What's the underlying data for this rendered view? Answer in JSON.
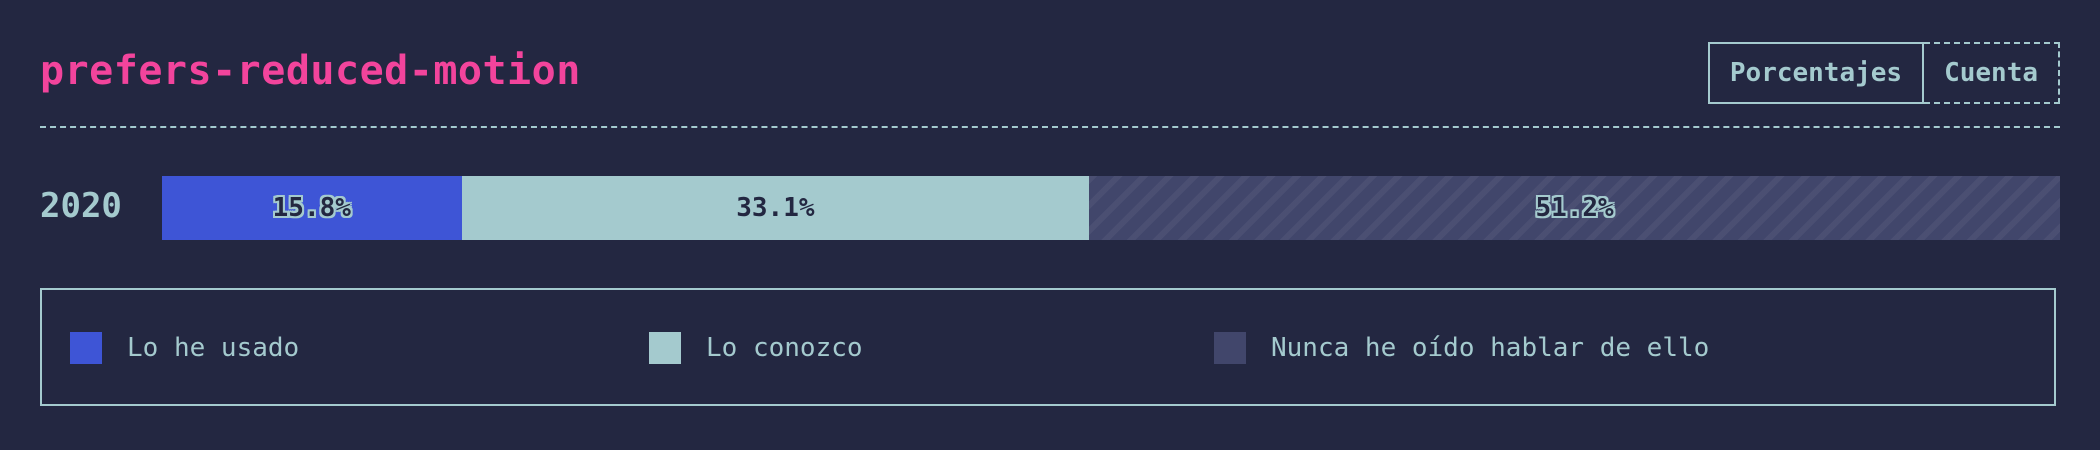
{
  "title": "prefers-reduced-motion",
  "toggle": {
    "percentages_label": "Porcentajes",
    "count_label": "Cuenta"
  },
  "colors": {
    "background": "#232741",
    "title": "#f2449c",
    "text": "#a4cace"
  },
  "chart_data": {
    "type": "bar",
    "orientation": "horizontal",
    "stacked": true,
    "categories": [
      "2020"
    ],
    "series": [
      {
        "name": "Lo he usado",
        "values": [
          15.8
        ],
        "label": "15.8%",
        "color": "#3e55d6"
      },
      {
        "name": "Lo conozco",
        "values": [
          33.1
        ],
        "label": "33.1%",
        "color": "#a4cace"
      },
      {
        "name": "Nunca he oído hablar de ello",
        "values": [
          51.2
        ],
        "label": "51.2%",
        "color": "#41466b"
      }
    ],
    "xlim": [
      0,
      100
    ],
    "legend_position": "bottom"
  }
}
